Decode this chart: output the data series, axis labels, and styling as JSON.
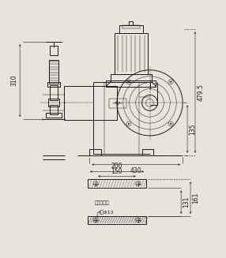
{
  "bg_color": "#e8e4dc",
  "line_color": "#1a1a1a",
  "lw_main": 0.7,
  "lw_thin": 0.35,
  "lw_dim": 0.4,
  "dim_fontsize": 5.5,
  "annot_fontsize": 4.5,
  "dim_479_5": "479.5",
  "dim_310": "310",
  "dim_135": "135",
  "dim_430": "430",
  "dim_200": "200",
  "dim_150": "150",
  "dim_131": "131",
  "dim_161": "161",
  "label_base": "机底尺十图",
  "label_holes": "4～Φ13"
}
